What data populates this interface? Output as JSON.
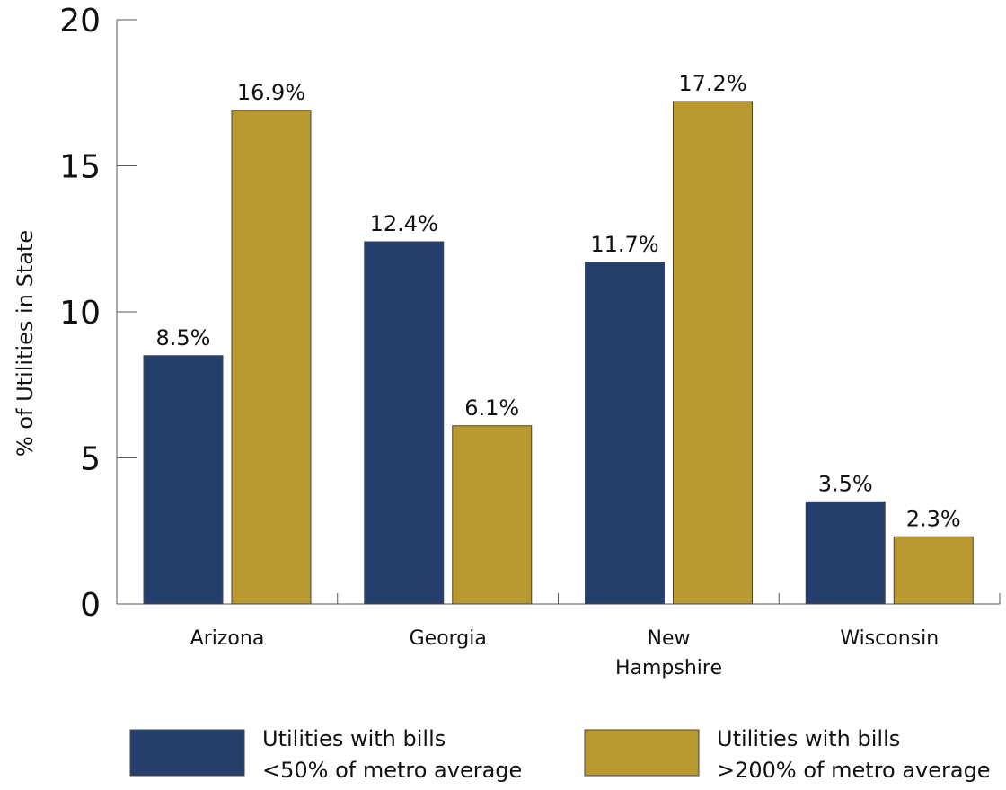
{
  "chart_data": {
    "type": "bar",
    "title": "",
    "xlabel": "",
    "ylabel": "% of Utilities in State",
    "ylim": [
      0,
      20
    ],
    "yticks": [
      "0",
      "5",
      "10",
      "15",
      "20"
    ],
    "categories": [
      [
        "Arizona"
      ],
      [
        "Georgia"
      ],
      [
        "New",
        "Hampshire"
      ],
      [
        "Wisconsin"
      ]
    ],
    "series": [
      {
        "name": [
          "Utilities with bills",
          "<50% of metro average"
        ],
        "color": "#243f6b",
        "values": [
          8.5,
          12.4,
          11.7,
          3.5
        ],
        "labels": [
          "8.5%",
          "12.4%",
          "11.7%",
          "3.5%"
        ]
      },
      {
        "name": [
          "Utilities with bills",
          ">200% of metro average"
        ],
        "color": "#b8982f",
        "values": [
          16.9,
          6.1,
          17.2,
          2.3
        ],
        "labels": [
          "16.9%",
          "6.1%",
          "17.2%",
          "2.3%"
        ]
      }
    ],
    "grid": false,
    "legend": "bottom"
  }
}
